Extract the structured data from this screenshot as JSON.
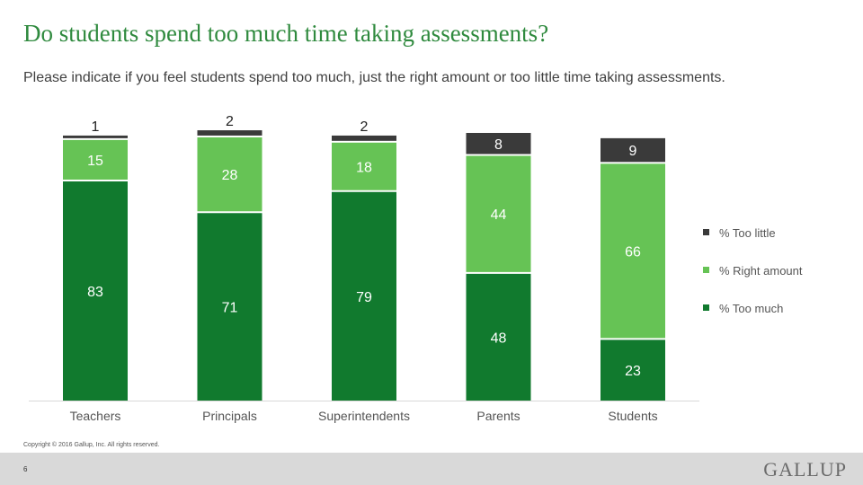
{
  "slide": {
    "title": "Do students spend too much time taking assessments?",
    "subtitle": "Please indicate if you feel students spend too much, just the right amount or too little time taking assessments.",
    "copyright": "Copyright © 2016 Gallup, Inc. All rights reserved.",
    "page_number": "6",
    "logo": "GALLUP"
  },
  "colors": {
    "too_much": "#117a2e",
    "right_amount": "#66c355",
    "too_little": "#3a3a3a"
  },
  "chart_data": {
    "type": "bar",
    "stacked": true,
    "categories": [
      "Teachers",
      "Principals",
      "Superintendents",
      "Parents",
      "Students"
    ],
    "series": [
      {
        "name": "% Too much",
        "values": [
          83,
          71,
          79,
          48,
          23
        ]
      },
      {
        "name": "% Right amount",
        "values": [
          15,
          28,
          18,
          44,
          66
        ]
      },
      {
        "name": "% Too little",
        "values": [
          1,
          2,
          2,
          8,
          9
        ]
      }
    ],
    "legend_order": [
      "% Too little",
      "% Right amount",
      "% Too much"
    ],
    "ylim": [
      0,
      100
    ],
    "grid": false,
    "legend_position": "right"
  }
}
